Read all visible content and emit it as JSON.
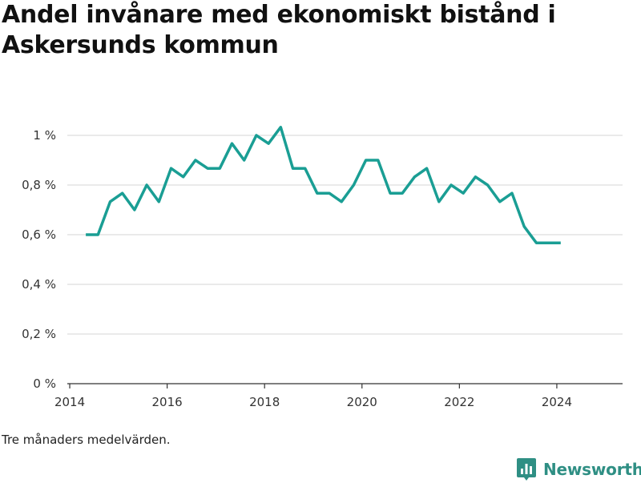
{
  "title": "Andel invånare med ekonomiskt bistånd i Askersunds kommun",
  "footnote": "Tre månaders medelvärden.",
  "brand": {
    "name": "Newsworthy",
    "color": "#2f8f84",
    "icon": "bar-chart-logo-icon"
  },
  "chart_data": {
    "type": "line",
    "title": "Andel invånare med ekonomiskt bistånd i Askersunds kommun",
    "xlabel": "",
    "ylabel": "",
    "xlim": [
      2013.95,
      2025.35
    ],
    "ylim": [
      0,
      1.0
    ],
    "x_ticks": [
      2014,
      2016,
      2018,
      2020,
      2022,
      2024
    ],
    "x_tick_labels": [
      "2014",
      "2016",
      "2018",
      "2020",
      "2022",
      "2024"
    ],
    "y_ticks": [
      0,
      0.2,
      0.4,
      0.6,
      0.8,
      1.0
    ],
    "y_tick_labels": [
      "0 %",
      "0,2 %",
      "0,4 %",
      "0,6 %",
      "0,8 %",
      "1 %"
    ],
    "grid": true,
    "line_color": "#1a9e94",
    "series": [
      {
        "name": "",
        "x": [
          2014.33,
          2014.58,
          2014.83,
          2015.08,
          2015.33,
          2015.58,
          2015.83,
          2016.08,
          2016.33,
          2016.58,
          2016.83,
          2017.08,
          2017.33,
          2017.58,
          2017.83,
          2018.08,
          2018.33,
          2018.58,
          2018.83,
          2019.08,
          2019.33,
          2019.58,
          2019.83,
          2020.08,
          2020.33,
          2020.58,
          2020.83,
          2021.08,
          2021.33,
          2021.58,
          2021.83,
          2022.08,
          2022.33,
          2022.58,
          2022.83,
          2023.08,
          2023.33,
          2023.58,
          2023.83,
          2024.08
        ],
        "values": [
          0.6,
          0.6,
          0.733,
          0.767,
          0.7,
          0.8,
          0.733,
          0.867,
          0.833,
          0.9,
          0.867,
          0.867,
          0.967,
          0.9,
          1.0,
          0.967,
          1.033,
          0.867,
          0.867,
          0.767,
          0.767,
          0.733,
          0.8,
          0.9,
          0.9,
          0.767,
          0.767,
          0.833,
          0.867,
          0.733,
          0.8,
          0.767,
          0.833,
          0.8,
          0.733,
          0.767,
          0.633,
          0.567,
          0.567,
          0.567
        ]
      }
    ]
  }
}
